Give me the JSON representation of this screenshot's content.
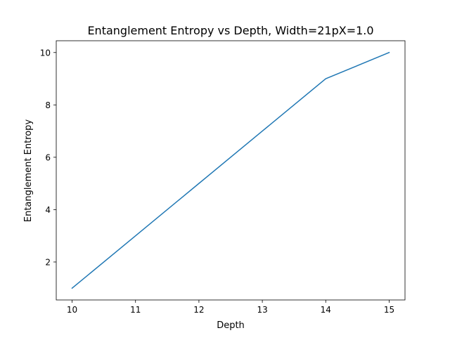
{
  "chart_data": {
    "type": "line",
    "title": "Entanglement Entropy vs Depth, Width=21pX=1.0",
    "xlabel": "Depth",
    "ylabel": "Entanglement Entropy",
    "x": [
      10,
      11,
      12,
      13,
      14,
      15
    ],
    "series": [
      {
        "values": [
          1,
          3,
          5,
          7,
          9,
          10
        ],
        "color": "#1f77b4"
      }
    ],
    "xlim": [
      9.75,
      15.25
    ],
    "ylim": [
      0.55,
      10.45
    ],
    "xticks": [
      10,
      11,
      12,
      13,
      14,
      15
    ],
    "yticks": [
      2,
      4,
      6,
      8,
      10
    ],
    "grid": false,
    "legend": "none"
  }
}
